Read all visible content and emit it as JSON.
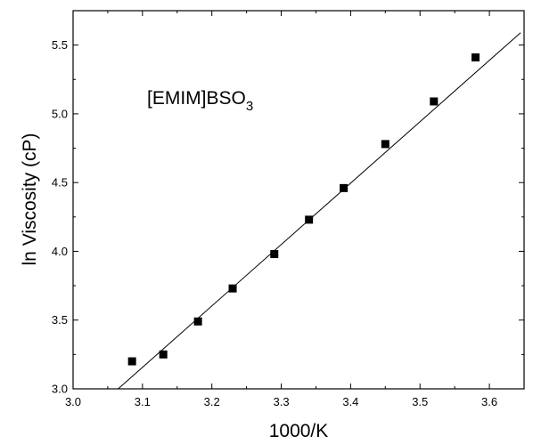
{
  "chart_data": {
    "type": "scatter",
    "xlabel": "1000/K",
    "ylabel": "ln Viscosity (cP)",
    "annotation": {
      "main": "[EMIM]BSO",
      "subscript": "3"
    },
    "xlim": [
      3.0,
      3.65
    ],
    "ylim": [
      3.0,
      5.75
    ],
    "x_ticks": [
      3.0,
      3.1,
      3.2,
      3.3,
      3.4,
      3.5,
      3.6
    ],
    "x_tick_labels": [
      "3.0",
      "3.1",
      "3.2",
      "3.3",
      "3.4",
      "3.5",
      "3.6"
    ],
    "y_ticks": [
      3.0,
      3.5,
      4.0,
      4.5,
      5.0,
      5.5
    ],
    "y_tick_labels": [
      "3.0",
      "3.5",
      "4.0",
      "4.5",
      "5.0",
      "5.5"
    ],
    "grid": false,
    "series": [
      {
        "marker": "square",
        "color": "#000000",
        "x": [
          3.085,
          3.13,
          3.18,
          3.23,
          3.29,
          3.34,
          3.39,
          3.45,
          3.52,
          3.58
        ],
        "y": [
          3.2,
          3.25,
          3.49,
          3.73,
          3.98,
          4.23,
          4.46,
          4.78,
          5.09,
          5.41
        ]
      }
    ],
    "fit_line": {
      "color": "#000000",
      "x": [
        3.065,
        3.645
      ],
      "y": [
        3.0,
        5.59
      ]
    }
  }
}
